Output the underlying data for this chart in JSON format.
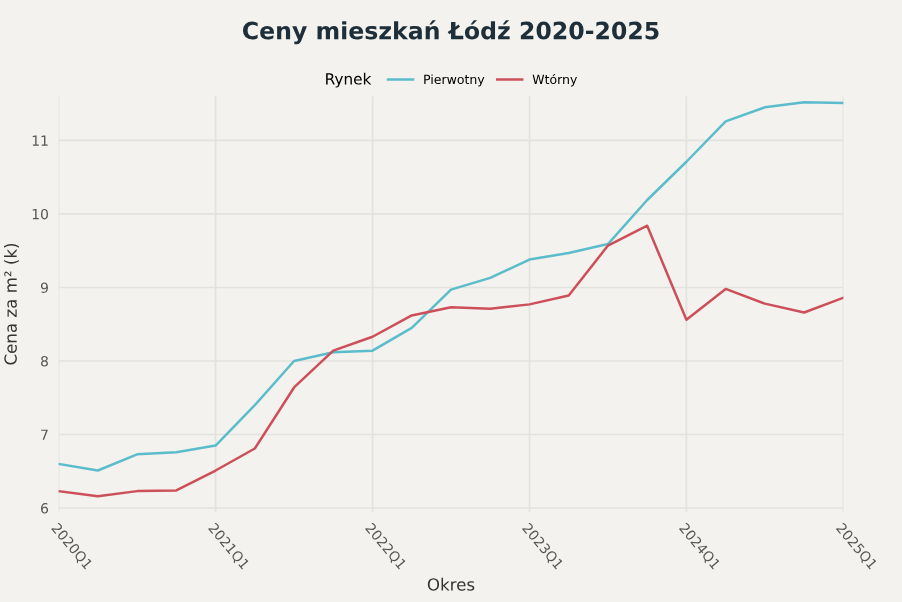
{
  "chart_data": {
    "type": "line",
    "title": "Ceny mieszkań Łódź 2020-2025",
    "xlabel": "Okres",
    "ylabel": "Cena za m² (k)",
    "legend_title": "Rynek",
    "legend": "top",
    "categories": [
      "2020Q1",
      null,
      null,
      null,
      "2021Q1",
      null,
      null,
      null,
      "2022Q1",
      null,
      null,
      null,
      "2023Q1",
      null,
      null,
      null,
      "2024Q1",
      null,
      null,
      null,
      "2025Q1"
    ],
    "series": [
      {
        "name": "Pierwotny",
        "color": "#5bbccc",
        "values": [
          6.6,
          6.51,
          6.73,
          6.76,
          6.85,
          7.4,
          8.0,
          8.12,
          8.14,
          8.45,
          8.97,
          9.13,
          9.38,
          9.47,
          9.59,
          10.19,
          10.71,
          11.26,
          11.45,
          11.52,
          11.51
        ]
      },
      {
        "name": "Wtórny",
        "color": "#cc4f5a",
        "values": [
          6.23,
          6.16,
          6.23,
          6.24,
          6.51,
          6.81,
          7.64,
          8.14,
          8.33,
          8.62,
          8.73,
          8.71,
          8.77,
          8.89,
          9.57,
          9.84,
          8.56,
          8.98,
          8.78,
          8.66,
          8.86
        ]
      }
    ],
    "ylim": [
      5.95,
      11.6
    ],
    "yticks": [
      6,
      7,
      8,
      9,
      10,
      11
    ],
    "grid": true,
    "marker": "none",
    "line_style": "solid"
  }
}
